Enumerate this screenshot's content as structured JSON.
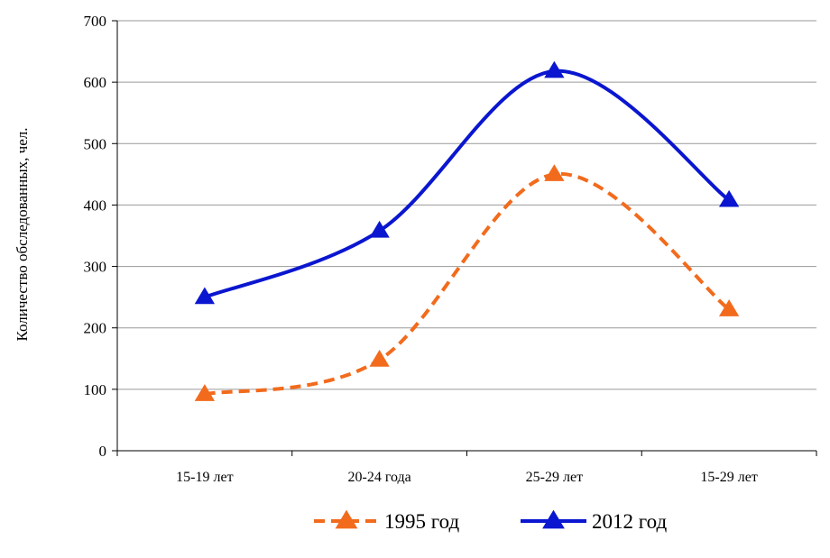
{
  "chart_data": {
    "type": "line",
    "title": "",
    "xlabel": "",
    "ylabel": "Количество обследованных, чел.",
    "categories": [
      "15-19 лет",
      "20-24 года",
      "25-29 лет",
      "15-29 лет"
    ],
    "ylim": [
      0,
      700
    ],
    "yticks": [
      0,
      100,
      200,
      300,
      400,
      500,
      600,
      700
    ],
    "grid": true,
    "legend_position": "bottom",
    "smooth": true,
    "series": [
      {
        "name": "1995 год",
        "values": [
          92,
          148,
          450,
          230
        ],
        "color": "#f26b1d",
        "dashed": true,
        "marker": "triangle"
      },
      {
        "name": "2012 год",
        "values": [
          250,
          358,
          618,
          408
        ],
        "color": "#0a16cf",
        "dashed": false,
        "marker": "triangle"
      }
    ]
  }
}
